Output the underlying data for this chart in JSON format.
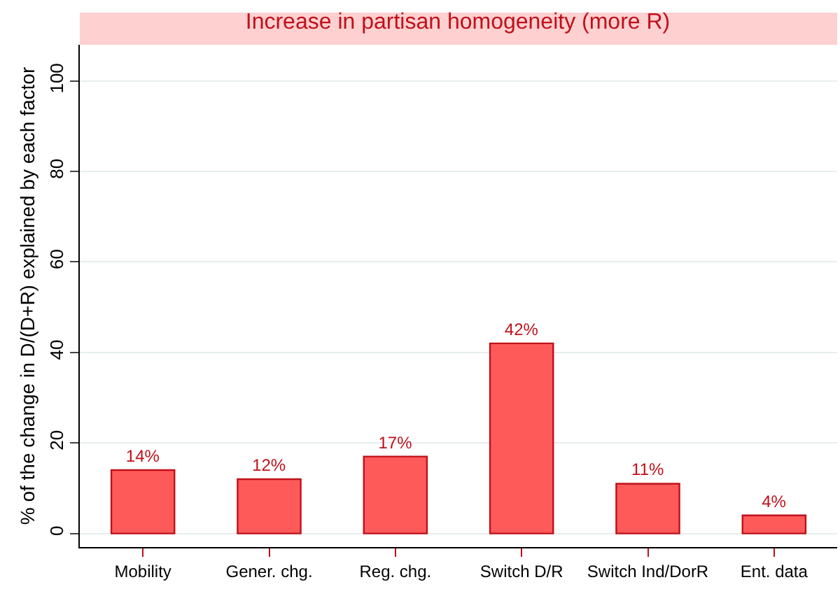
{
  "chart_data": {
    "type": "bar",
    "title": "Increase in partisan homogeneity (more R)",
    "ylabel": "% of the change in D/(D+R) explained by each factor",
    "categories": [
      "Mobility",
      "Gener. chg.",
      "Reg. chg.",
      "Switch D/R",
      "Switch Ind/DorR",
      "Ent. data"
    ],
    "values": [
      14,
      12,
      17,
      42,
      11,
      4
    ],
    "value_labels": [
      "14%",
      "12%",
      "17%",
      "42%",
      "11%",
      "4%"
    ],
    "color": "#ff5a5a",
    "ylim": [
      -3,
      108
    ],
    "yticks": [
      0,
      20,
      40,
      60,
      80,
      100
    ],
    "grid": "y",
    "legend": false
  }
}
